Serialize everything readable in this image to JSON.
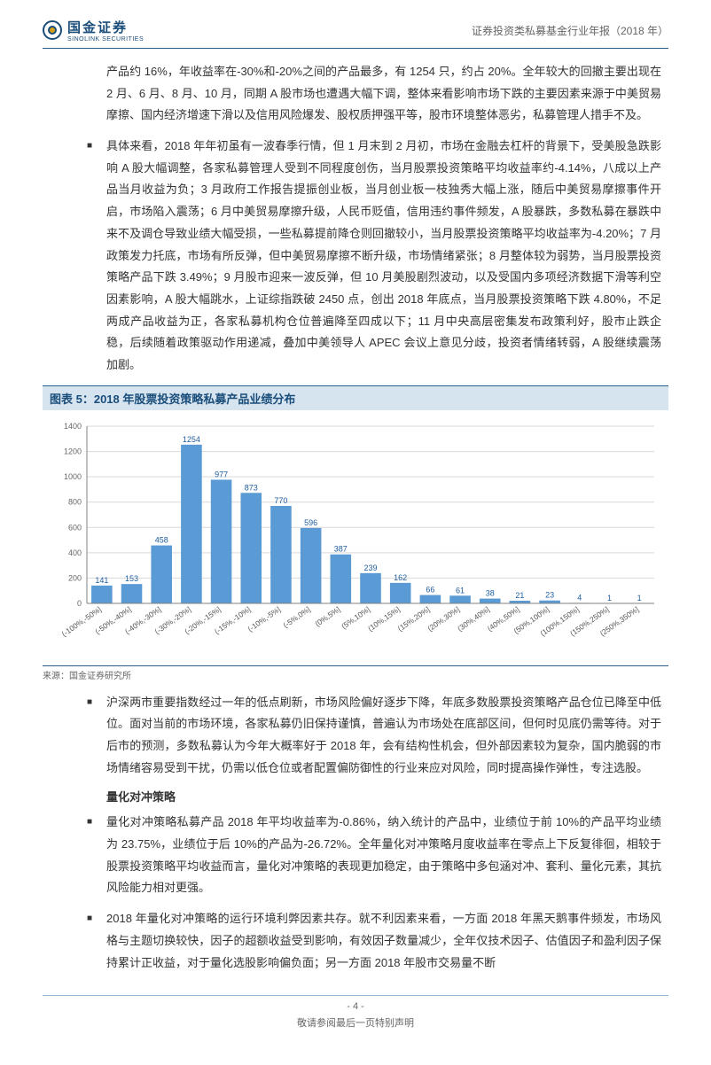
{
  "header": {
    "logo_cn": "国金证券",
    "logo_en": "SINOLINK SECURITIES",
    "title_right": "证券投资类私募基金行业年报（2018 年）"
  },
  "para1": "产品约 16%，年收益率在-30%和-20%之间的产品最多，有 1254 只，约占 20%。全年较大的回撤主要出现在 2 月、6 月、8 月、10 月，同期 A 股市场也遭遇大幅下调，整体来看影响市场下跌的主要因素来源于中美贸易摩擦、国内经济增速下滑以及信用风险爆发、股权质押强平等，股市环境整体恶劣，私募管理人措手不及。",
  "para2": "具体来看，2018 年年初虽有一波春季行情，但 1 月末到 2 月初，市场在金融去杠杆的背景下，受美股急跌影响 A 股大幅调整，各家私募管理人受到不同程度创伤，当月股票投资策略平均收益率约-4.14%，八成以上产品当月收益为负；3 月政府工作报告提振创业板，当月创业板一枝独秀大幅上涨，随后中美贸易摩擦事件开启，市场陷入震荡；6 月中美贸易摩擦升级，人民币贬值，信用违约事件频发，A 股暴跌，多数私募在暴跌中来不及调仓导致业绩大幅受损，一些私募提前降仓则回撤较小，当月股票投资策略平均收益率为-4.20%；7 月政策发力托底，市场有所反弹，但中美贸易摩擦不断升级，市场情绪紧张；8 月整体较为弱势，当月股票投资策略产品下跌 3.49%；9 月股市迎来一波反弹，但 10 月美股剧烈波动，以及受国内多项经济数据下滑等利空因素影响，A 股大幅跳水，上证综指跌破 2450 点，创出 2018 年底点，当月股票投资策略下跌 4.80%，不足两成产品收益为正，各家私募机构仓位普遍降至四成以下；11 月中央高层密集发布政策利好，股市止跌企稳，后续随着政策驱动作用递减，叠加中美领导人 APEC 会议上意见分歧，投资者情绪转弱，A 股继续震荡加剧。",
  "chart": {
    "title": "图表 5：2018 年股票投资策略私募产品业绩分布",
    "type": "bar",
    "categories": [
      "(-100%,-50%]",
      "(-50%,-40%]",
      "(-40%,-30%]",
      "(-30%,-20%]",
      "(-20%,-15%]",
      "(-15%,-10%]",
      "(-10%,-5%]",
      "(-5%,0%]",
      "(0%,5%]",
      "(5%,10%]",
      "(10%,15%]",
      "(15%,20%]",
      "(20%,30%]",
      "(30%,40%]",
      "(40%,50%]",
      "(50%,100%]",
      "(100%,150%]",
      "(150%,250%]",
      "(250%,350%]"
    ],
    "values": [
      141,
      153,
      458,
      1254,
      977,
      873,
      770,
      596,
      387,
      239,
      162,
      66,
      61,
      38,
      21,
      23,
      4,
      1,
      1
    ],
    "bar_color": "#5b9bd5",
    "label_color": "#1f5da0",
    "ylim": [
      0,
      1400
    ],
    "ytick_step": 200,
    "grid_color": "#d9d9d9",
    "axis_color": "#808080",
    "axis_font_size": 9,
    "value_label_font_size": 9,
    "source": "来源：国金证券研究所"
  },
  "para3": "沪深两市重要指数经过一年的低点刷新，市场风险偏好逐步下降，年底多数股票投资策略产品仓位已降至中低位。面对当前的市场环境，各家私募仍旧保持谨慎，普遍认为市场处在底部区间，但何时见底仍需等待。对于后市的预测，多数私募认为今年大概率好于 2018 年，会有结构性机会，但外部因素较为复杂，国内脆弱的市场情绪容易受到干扰，仍需以低仓位或者配置偏防御性的行业来应对风险，同时提高操作弹性，专注选股。",
  "heading": "量化对冲策略",
  "para4": "量化对冲策略私募产品 2018 年平均收益率为-0.86%，纳入统计的产品中，业绩位于前 10%的产品平均业绩为 23.75%，业绩位于后 10%的产品为-26.72%。全年量化对冲策略月度收益率在零点上下反复徘徊，相较于股票投资策略平均收益而言，量化对冲策略的表现更加稳定，由于策略中多包涵对冲、套利、量化元素，其抗风险能力相对更强。",
  "para5": "2018 年量化对冲策略的运行环境利弊因素共存。就不利因素来看，一方面 2018 年黑天鹅事件频发，市场风格与主题切换较快，因子的超额收益受到影响，有效因子数量减少，全年仅技术因子、估值因子和盈利因子保持累计正收益，对于量化选股影响偏负面；另一方面 2018 年股市交易量不断",
  "footer": {
    "page": "- 4 -",
    "notice": "敬请参阅最后一页特别声明"
  }
}
